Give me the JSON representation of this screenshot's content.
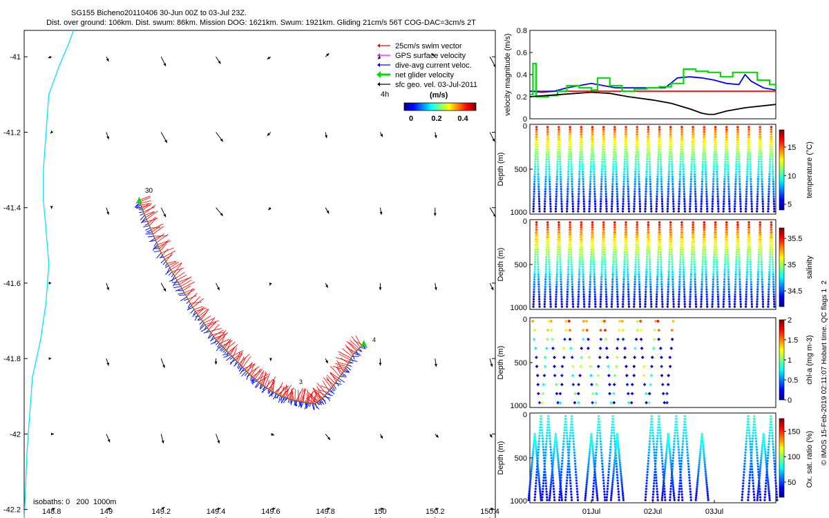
{
  "chart_data": [
    {
      "type": "scatter",
      "panel": "map",
      "title_line1": "SG155 Bicheno20110406 30-Jun 00Z to 03-Jul 23Z.",
      "title_line2": "Dist. over ground: 106km. Dist. swum: 86km. Mission DOG: 1621km. Swum: 1921km. Gliding 21cm/s 56T COG-DAC=3cm/s 2T",
      "xlim": [
        148.7,
        150.42
      ],
      "ylim": [
        -42.23,
        -40.93
      ],
      "xticks": [
        148.8,
        149,
        149.2,
        149.4,
        149.6,
        149.8,
        150,
        150.2,
        150.4
      ],
      "xticklabels": [
        "148.8",
        "149",
        "149.2",
        "149.4",
        "149.6",
        "149.8",
        "150",
        "150.2",
        "150.4"
      ],
      "yticks": [
        -41,
        -41.2,
        -41.4,
        -41.6,
        -41.8,
        -42,
        -42.2
      ],
      "yticklabels": [
        "-41",
        "-41.2",
        "-41.4",
        "-41.6",
        "-41.8",
        "-42",
        "-42.2"
      ],
      "legend": [
        "25cm/s swim vector",
        "GPS surface velocity",
        "dive-avg current veloc.",
        "net glider velocity",
        "sfc geo. vel. 03-Jul-2011"
      ],
      "legend_colors": [
        "#ff0000",
        "#ff00ff",
        "#0000ff",
        "#00dd00",
        "#000000"
      ],
      "colorbar_title": "(m/s)",
      "colorbar_ticks": [
        "0",
        "0.2",
        "0.4"
      ],
      "colorbar_range": [
        0,
        0.5
      ],
      "scale_note": "4h",
      "isobath_note": "isobaths: 0   200  1000m",
      "track_labels": [
        "30",
        "3",
        "4"
      ],
      "glider_track": {
        "lon": [
          149.12,
          149.14,
          149.17,
          149.2,
          149.24,
          149.28,
          149.32,
          149.36,
          149.4,
          149.44,
          149.48,
          149.52,
          149.56,
          149.6,
          149.64,
          149.68,
          149.72,
          149.76,
          149.79,
          149.83,
          149.87,
          149.9,
          149.94
        ],
        "lat": [
          -41.38,
          -41.42,
          -41.47,
          -41.52,
          -41.57,
          -41.62,
          -41.67,
          -41.71,
          -41.75,
          -41.78,
          -41.81,
          -41.84,
          -41.865,
          -41.885,
          -41.9,
          -41.91,
          -41.915,
          -41.92,
          -41.905,
          -41.87,
          -41.83,
          -41.79,
          -41.76
        ]
      },
      "isobath_coast": {
        "lon": [
          148.88,
          148.86,
          148.83,
          148.81,
          148.79,
          148.78,
          148.77,
          148.77,
          148.78,
          148.79,
          148.78,
          148.76,
          148.73,
          148.72,
          148.71,
          148.7
        ],
        "lat": [
          -40.93,
          -40.97,
          -41.02,
          -41.06,
          -41.1,
          -41.2,
          -41.3,
          -41.38,
          -41.46,
          -41.55,
          -41.65,
          -41.75,
          -41.85,
          -41.95,
          -42.05,
          -42.23
        ]
      },
      "geo_vectors": {
        "lons": [
          148.8,
          149,
          149.2,
          149.4,
          149.6,
          149.8,
          150,
          150.2,
          150.4
        ],
        "lats": [
          -41,
          -41.2,
          -41.4,
          -41.6,
          -41.8,
          -42,
          -42.2
        ],
        "u": [
          [
            -0.03,
            0.02,
            0.04,
            0.04,
            -0.03,
            0.03,
            -0.02,
            -0.03,
            0.05
          ],
          [
            -0.01,
            0.02,
            0.05,
            0.06,
            -0.03,
            0.01,
            0.02,
            0.01,
            0.04
          ],
          [
            0.0,
            0.02,
            0.04,
            0.06,
            -0.02,
            0.03,
            0.01,
            0.0,
            0.05
          ],
          [
            0.0,
            0.02,
            0.04,
            0.03,
            -0.01,
            0.02,
            0.0,
            0.01,
            0.03
          ],
          [
            0.0,
            0.02,
            0.03,
            0.0,
            0.0,
            0.02,
            0.0,
            0.01,
            0.02
          ],
          [
            0.02,
            0.03,
            0.02,
            0.03,
            0.03,
            0.04,
            0.02,
            0.03,
            0.02
          ],
          [
            0.03,
            0.04,
            0.03,
            0.04,
            0.04,
            0.04,
            0.03,
            0.03,
            0.03
          ]
        ],
        "v": [
          [
            -0.01,
            -0.04,
            -0.08,
            -0.06,
            -0.02,
            0.03,
            -0.02,
            0.03,
            -0.09
          ],
          [
            -0.01,
            -0.06,
            -0.09,
            -0.08,
            -0.03,
            -0.05,
            -0.04,
            -0.05,
            -0.08
          ],
          [
            -0.01,
            -0.06,
            -0.08,
            -0.07,
            -0.02,
            -0.05,
            -0.06,
            -0.07,
            -0.08
          ],
          [
            0.0,
            -0.06,
            -0.07,
            -0.06,
            -0.02,
            -0.04,
            -0.06,
            -0.06,
            -0.06
          ],
          [
            0.0,
            -0.06,
            -0.08,
            -0.05,
            -0.02,
            -0.04,
            -0.06,
            -0.07,
            -0.07
          ],
          [
            0.0,
            -0.07,
            -0.08,
            -0.08,
            -0.01,
            -0.05,
            -0.04,
            -0.03,
            -0.03
          ],
          [
            0.01,
            0.01,
            0.02,
            0.01,
            0.01,
            0.01,
            0.01,
            0.01,
            0.01
          ]
        ]
      }
    },
    {
      "type": "line",
      "panel": "velocity",
      "ylabel": "velocity magnitude (m/s)",
      "xlim": [
        0,
        4
      ],
      "ylim": [
        0,
        0.8
      ],
      "yticks": [
        0,
        0.2,
        0.4,
        0.6,
        0.8
      ],
      "yticklabels": [
        "0",
        "0.2",
        "0.4",
        "0.6",
        "0.8"
      ],
      "series": [
        {
          "name": "swim speed",
          "color": "#ff0000",
          "x": [
            0,
            4
          ],
          "y": [
            0.25,
            0.25
          ]
        },
        {
          "name": "dive-avg current",
          "color": "#0000ff",
          "x": [
            0,
            0.2,
            0.4,
            0.6,
            0.8,
            1.0,
            1.2,
            1.4,
            1.6,
            1.8,
            2.0,
            2.2,
            2.4,
            2.6,
            2.8,
            3.0,
            3.2,
            3.4,
            3.5,
            3.6,
            3.8,
            4.0
          ],
          "y": [
            0.25,
            0.24,
            0.25,
            0.28,
            0.3,
            0.32,
            0.3,
            0.28,
            0.28,
            0.28,
            0.28,
            0.28,
            0.37,
            0.38,
            0.37,
            0.35,
            0.32,
            0.31,
            0.4,
            0.34,
            0.28,
            0.26
          ]
        },
        {
          "name": "net glider velocity",
          "color": "#00dd00",
          "x": [
            0,
            0.05,
            0.1,
            0.3,
            0.45,
            0.6,
            0.8,
            1.0,
            1.1,
            1.3,
            1.5,
            1.7,
            1.9,
            2.1,
            2.3,
            2.5,
            2.7,
            2.9,
            3.1,
            3.3,
            3.5,
            3.7,
            3.9,
            4.0
          ],
          "y": [
            0.22,
            0.5,
            0.2,
            0.21,
            0.25,
            0.3,
            0.28,
            0.26,
            0.37,
            0.3,
            0.25,
            0.27,
            0.28,
            0.29,
            0.32,
            0.45,
            0.43,
            0.42,
            0.38,
            0.42,
            0.42,
            0.35,
            0.31,
            0.26
          ]
        },
        {
          "name": "surface geostrophic",
          "color": "#000000",
          "x": [
            0,
            0.5,
            1.0,
            1.3,
            1.6,
            2.0,
            2.3,
            2.6,
            2.8,
            2.9,
            3.0,
            3.2,
            3.5,
            4.0
          ],
          "y": [
            0.2,
            0.22,
            0.24,
            0.23,
            0.2,
            0.17,
            0.14,
            0.09,
            0.05,
            0.04,
            0.04,
            0.07,
            0.1,
            0.13
          ]
        }
      ]
    },
    {
      "type": "scatter",
      "panel": "temperature",
      "ylabel": "Depth (m)",
      "colorbar_label": "temperature (°C)",
      "ylim": [
        1000,
        0
      ],
      "yticks": [
        0,
        500,
        1000
      ],
      "yticklabels": [
        "0",
        "500",
        "1000"
      ],
      "colorbar_range": [
        4,
        18
      ],
      "colorbar_ticks": [
        "5",
        "10",
        "15"
      ],
      "profiles": 22,
      "surface_value": 16.5,
      "bottom_value": 4.5
    },
    {
      "type": "scatter",
      "panel": "salinity",
      "ylabel": "Depth (m)",
      "colorbar_label": "salinity",
      "ylim": [
        1000,
        0
      ],
      "yticks": [
        0,
        500,
        1000
      ],
      "yticklabels": [
        "0",
        "500",
        "1000"
      ],
      "colorbar_range": [
        34.2,
        35.7
      ],
      "colorbar_ticks": [
        "34.5",
        "35",
        "35.5"
      ],
      "profiles": 22,
      "surface_value": 35.5,
      "bottom_value": 34.35
    },
    {
      "type": "scatter",
      "panel": "chlorophyll",
      "ylabel": "Depth (m)",
      "colorbar_label": "chl-a (mg m-3)",
      "ylim": [
        1000,
        0
      ],
      "yticks": [
        0,
        500,
        1000
      ],
      "yticklabels": [
        "0",
        "500",
        "1000"
      ],
      "colorbar_range": [
        0,
        2
      ],
      "colorbar_ticks": [
        "0",
        "0.5",
        "1",
        "1.5",
        "2"
      ],
      "profiles": 16
    },
    {
      "type": "scatter",
      "panel": "oxygen",
      "ylabel": "Depth (m)",
      "colorbar_label": "Ox. sat. ratio (%)",
      "ylim": [
        1000,
        0
      ],
      "yticks": [
        0,
        500,
        1000
      ],
      "yticklabels": [
        "0",
        "500",
        "1000"
      ],
      "colorbar_range": [
        20,
        175
      ],
      "colorbar_ticks": [
        "50",
        "100",
        "150"
      ],
      "xticklabels": [
        "01Jul",
        "02Jul",
        "03Jul"
      ],
      "x_days": [
        1,
        2,
        3
      ],
      "profile_days": [
        0.08,
        0.18,
        0.3,
        0.42,
        0.58,
        0.68,
        1.0,
        1.12,
        1.35,
        1.42,
        1.98,
        2.1,
        2.25,
        2.38,
        2.52,
        2.8,
        3.55,
        3.65,
        3.8,
        3.92
      ]
    }
  ],
  "credit": "© IMOS 15-Feb-2019 02:11:07 Hobart time. QC flags 1  2"
}
